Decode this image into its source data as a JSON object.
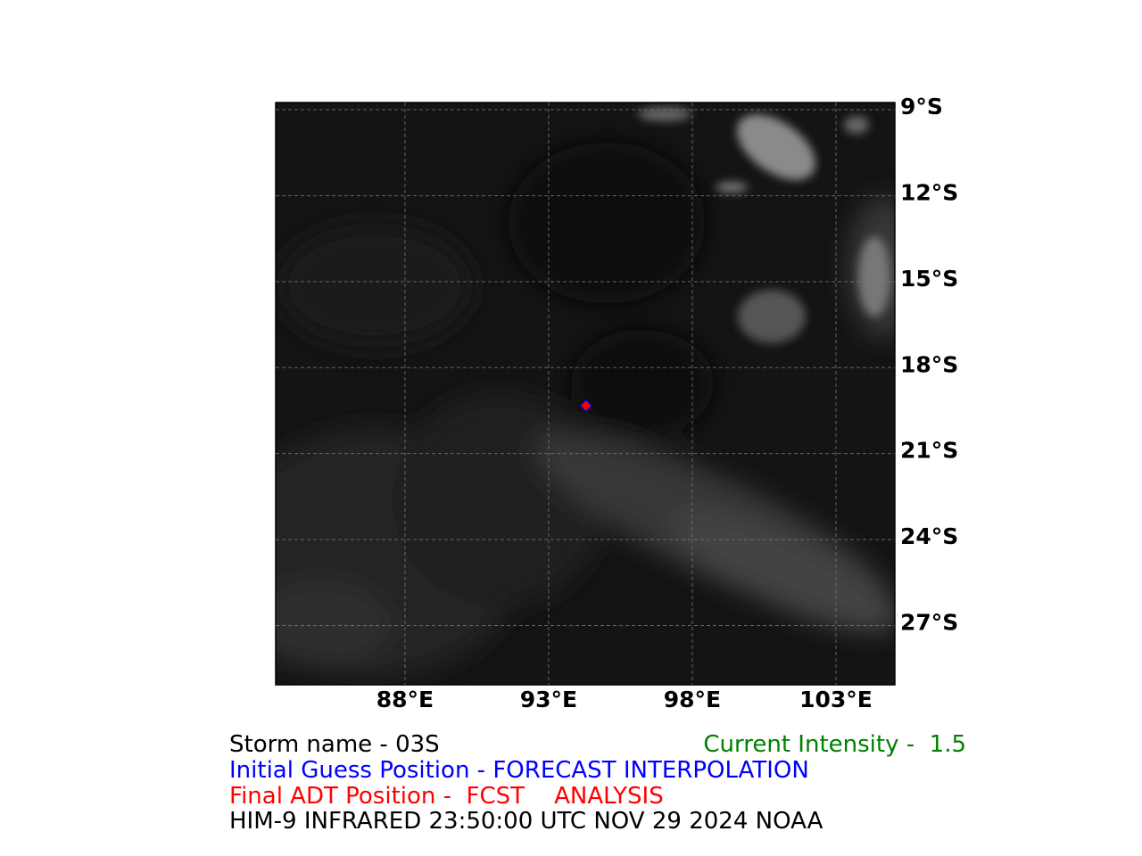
{
  "map": {
    "xlim": [
      83.5,
      105.05
    ],
    "ylim": [
      -29.07,
      -8.75
    ],
    "xticks": [
      {
        "value": 88,
        "label": "88°E"
      },
      {
        "value": 93,
        "label": "93°E"
      },
      {
        "value": 98,
        "label": "98°E"
      },
      {
        "value": 103,
        "label": "103°E"
      }
    ],
    "yticks": [
      {
        "value": -9,
        "label": "9°S"
      },
      {
        "value": -12,
        "label": "12°S"
      },
      {
        "value": -15,
        "label": "15°S"
      },
      {
        "value": -18,
        "label": "18°S"
      },
      {
        "value": -21,
        "label": "21°S"
      },
      {
        "value": -24,
        "label": "24°S"
      },
      {
        "value": -27,
        "label": "27°S"
      }
    ],
    "grid": true,
    "positions": [
      {
        "lon": 94.3,
        "lat": -19.33,
        "color": "#0000ff"
      },
      {
        "lon": 94.3,
        "lat": -19.33,
        "color": "#ff0000"
      }
    ]
  },
  "info": {
    "storm_name": "Storm name - 03S",
    "intensity": "Current Intensity -  1.5",
    "initial_guess": "Initial Guess Position - FORECAST INTERPOLATION",
    "final_position": "Final ADT Position -  FCST    ANALYSIS",
    "source": "HIM-9 INFRARED 23:50:00 UTC NOV 29 2024 NOAA"
  }
}
